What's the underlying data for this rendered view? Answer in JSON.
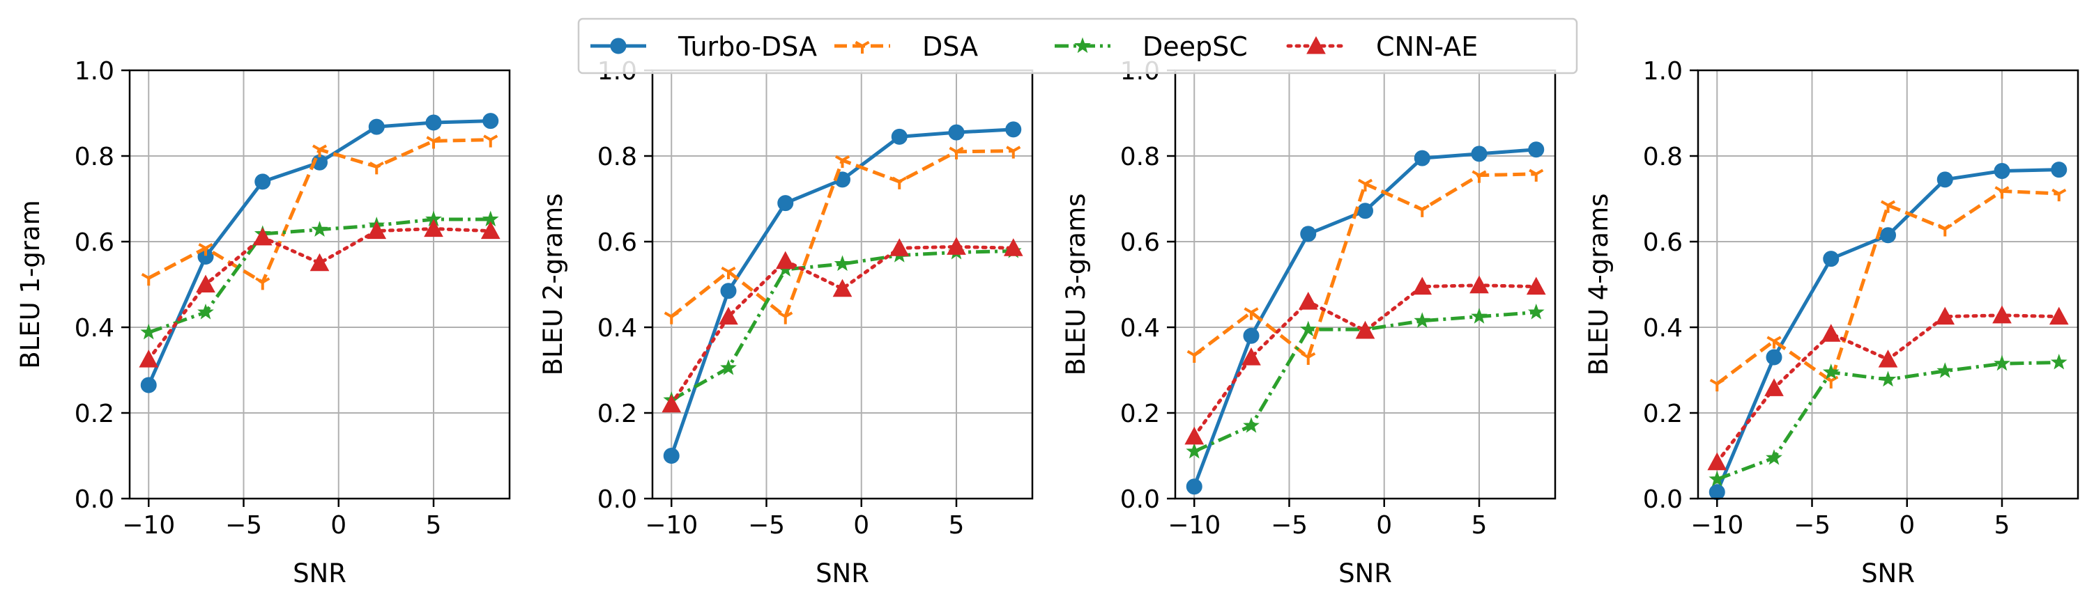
{
  "legend": {
    "entries": [
      {
        "label": "Turbo-DSA",
        "color": "#1f77b4",
        "dash": "solid",
        "marker": "circle"
      },
      {
        "label": "DSA",
        "color": "#ff7f0e",
        "dash": "dashed",
        "marker": "tri_down"
      },
      {
        "label": "DeepSC",
        "color": "#2ca02c",
        "dash": "dashdot",
        "marker": "star"
      },
      {
        "label": "CNN-AE",
        "color": "#d62728",
        "dash": "dotted",
        "marker": "triangle"
      }
    ],
    "placement": "top-center"
  },
  "chart_data": [
    {
      "type": "line",
      "xlabel": "SNR",
      "ylabel": "BLEU 1-gram",
      "xlim": [
        -11,
        9
      ],
      "ylim": [
        0,
        1
      ],
      "xticks": [
        -10,
        -5,
        0,
        5
      ],
      "xtick_labels": [
        "−10",
        "−5",
        "0",
        "5"
      ],
      "yticks": [
        0,
        0.2,
        0.4,
        0.6,
        0.8,
        1.0
      ],
      "ytick_labels": [
        "0.0",
        "0.2",
        "0.4",
        "0.6",
        "0.8",
        "1.0"
      ],
      "grid": true,
      "x": [
        -10,
        -7,
        -4,
        -1,
        2,
        5,
        8
      ],
      "series": [
        {
          "name": "Turbo-DSA",
          "values": [
            0.265,
            0.565,
            0.74,
            0.785,
            0.868,
            0.878,
            0.882
          ]
        },
        {
          "name": "DSA",
          "values": [
            0.515,
            0.585,
            0.505,
            0.815,
            0.775,
            0.835,
            0.838
          ]
        },
        {
          "name": "DeepSC",
          "values": [
            0.388,
            0.435,
            0.618,
            0.628,
            0.638,
            0.652,
            0.652
          ]
        },
        {
          "name": "CNN-AE",
          "values": [
            0.325,
            0.5,
            0.61,
            0.55,
            0.625,
            0.63,
            0.625
          ]
        }
      ]
    },
    {
      "type": "line",
      "xlabel": "SNR",
      "ylabel": "BLEU 2-grams",
      "xlim": [
        -11,
        9
      ],
      "ylim": [
        0,
        1
      ],
      "xticks": [
        -10,
        -5,
        0,
        5
      ],
      "xtick_labels": [
        "−10",
        "−5",
        "0",
        "5"
      ],
      "yticks": [
        0,
        0.2,
        0.4,
        0.6,
        0.8,
        1.0
      ],
      "ytick_labels": [
        "0.0",
        "0.2",
        "0.4",
        "0.6",
        "0.8",
        "1.0"
      ],
      "grid": true,
      "x": [
        -10,
        -7,
        -4,
        -1,
        2,
        5,
        8
      ],
      "series": [
        {
          "name": "Turbo-DSA",
          "values": [
            0.1,
            0.485,
            0.69,
            0.745,
            0.845,
            0.855,
            0.862
          ]
        },
        {
          "name": "DSA",
          "values": [
            0.425,
            0.53,
            0.425,
            0.79,
            0.74,
            0.81,
            0.812
          ]
        },
        {
          "name": "DeepSC",
          "values": [
            0.23,
            0.305,
            0.535,
            0.548,
            0.568,
            0.575,
            0.578
          ]
        },
        {
          "name": "CNN-AE",
          "values": [
            0.22,
            0.425,
            0.555,
            0.49,
            0.585,
            0.588,
            0.585
          ]
        }
      ]
    },
    {
      "type": "line",
      "xlabel": "SNR",
      "ylabel": "BLEU 3-grams",
      "xlim": [
        -11,
        9
      ],
      "ylim": [
        0,
        1
      ],
      "xticks": [
        -10,
        -5,
        0,
        5
      ],
      "xtick_labels": [
        "−10",
        "−5",
        "0",
        "5"
      ],
      "yticks": [
        0,
        0.2,
        0.4,
        0.6,
        0.8,
        1.0
      ],
      "ytick_labels": [
        "0.0",
        "0.2",
        "0.4",
        "0.6",
        "0.8",
        "1.0"
      ],
      "grid": true,
      "x": [
        -10,
        -7,
        -4,
        -1,
        2,
        5,
        8
      ],
      "series": [
        {
          "name": "Turbo-DSA",
          "values": [
            0.028,
            0.38,
            0.618,
            0.672,
            0.795,
            0.805,
            0.815
          ]
        },
        {
          "name": "DSA",
          "values": [
            0.335,
            0.435,
            0.33,
            0.735,
            0.675,
            0.755,
            0.758
          ]
        },
        {
          "name": "DeepSC",
          "values": [
            0.11,
            0.17,
            0.395,
            0.395,
            0.415,
            0.425,
            0.435
          ]
        },
        {
          "name": "CNN-AE",
          "values": [
            0.145,
            0.33,
            0.46,
            0.392,
            0.495,
            0.498,
            0.495
          ]
        }
      ]
    },
    {
      "type": "line",
      "xlabel": "SNR",
      "ylabel": "BLEU 4-grams",
      "xlim": [
        -11,
        9
      ],
      "ylim": [
        0,
        1
      ],
      "xticks": [
        -10,
        -5,
        0,
        5
      ],
      "xtick_labels": [
        "−10",
        "−5",
        "0",
        "5"
      ],
      "yticks": [
        0,
        0.2,
        0.4,
        0.6,
        0.8,
        1.0
      ],
      "ytick_labels": [
        "0.0",
        "0.2",
        "0.4",
        "0.6",
        "0.8",
        "1.0"
      ],
      "grid": true,
      "x": [
        -10,
        -7,
        -4,
        -1,
        2,
        5,
        8
      ],
      "series": [
        {
          "name": "Turbo-DSA",
          "values": [
            0.015,
            0.33,
            0.56,
            0.615,
            0.745,
            0.765,
            0.768
          ]
        },
        {
          "name": "DSA",
          "values": [
            0.268,
            0.368,
            0.275,
            0.685,
            0.63,
            0.718,
            0.712
          ]
        },
        {
          "name": "DeepSC",
          "values": [
            0.045,
            0.095,
            0.295,
            0.278,
            0.298,
            0.315,
            0.318
          ]
        },
        {
          "name": "CNN-AE",
          "values": [
            0.085,
            0.258,
            0.385,
            0.325,
            0.425,
            0.428,
            0.425
          ]
        }
      ]
    }
  ]
}
